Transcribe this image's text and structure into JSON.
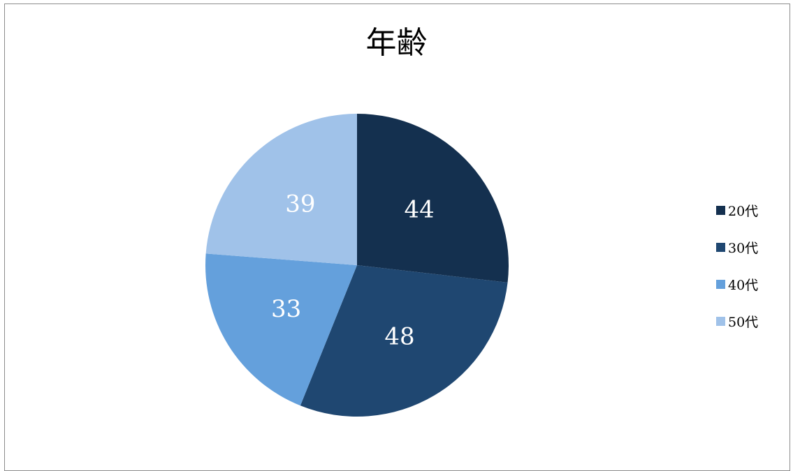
{
  "chart_data": {
    "type": "pie",
    "title": "年齢",
    "categories": [
      "20代",
      "30代",
      "40代",
      "50代"
    ],
    "values": [
      44,
      48,
      33,
      39
    ],
    "colors": [
      "#14304f",
      "#1f4771",
      "#64a0dc",
      "#a0c2e9"
    ],
    "data_labels": [
      "44",
      "48",
      "33",
      "39"
    ],
    "legend_position": "right"
  }
}
